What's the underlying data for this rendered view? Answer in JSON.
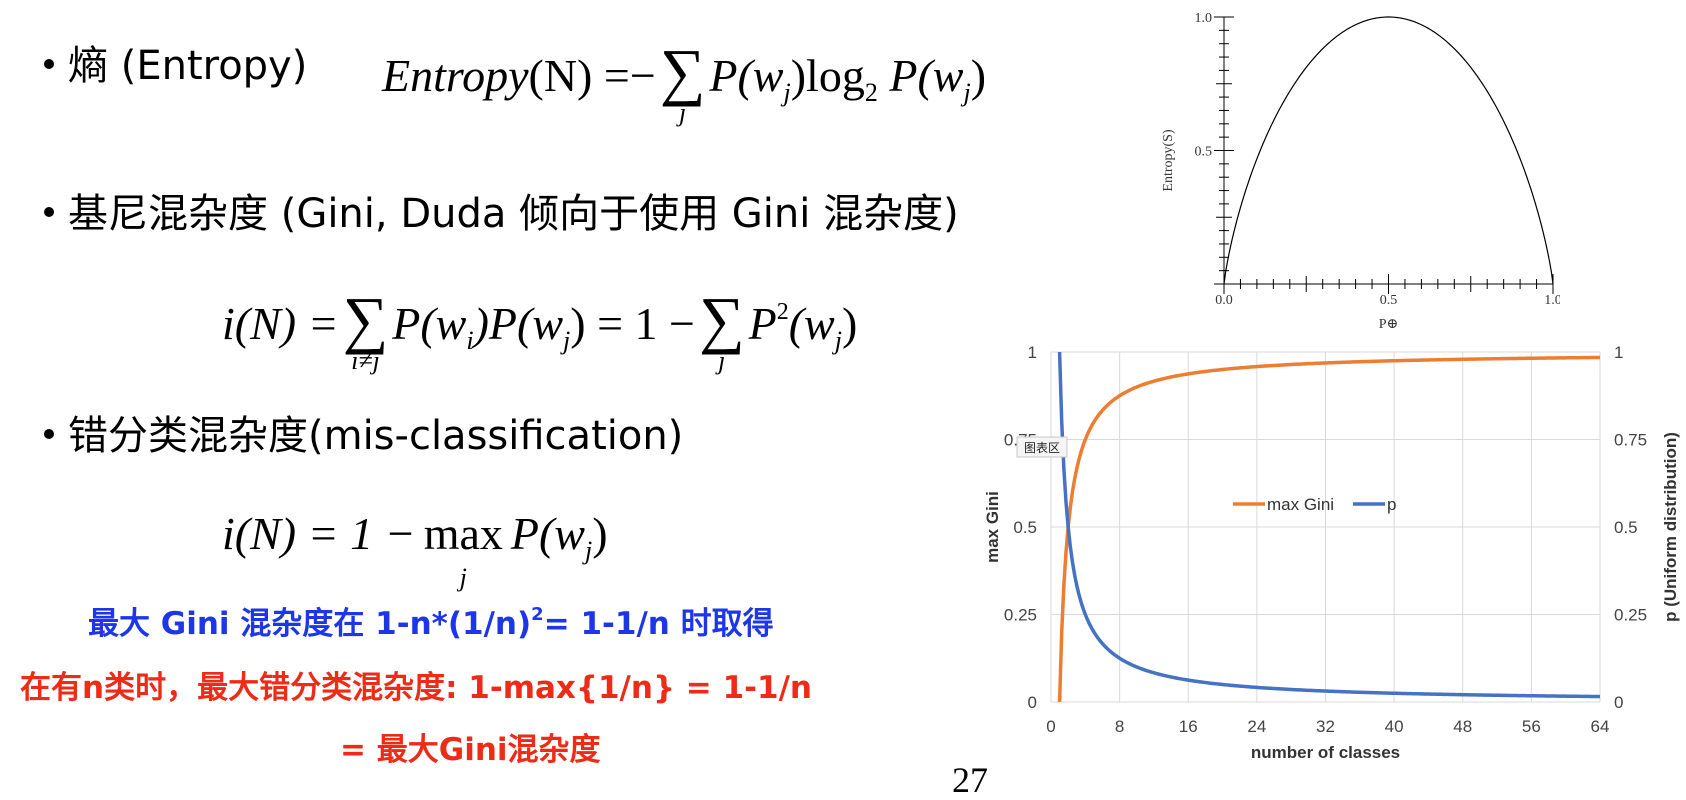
{
  "bullets": [
    {
      "label": "熵 (Entropy)"
    },
    {
      "label": "基尼混杂度 (Gini, Duda 倾向于使用 Gini 混杂度)"
    },
    {
      "label": "错分类混杂度(mis-classification)"
    }
  ],
  "formulas": {
    "entropy": {
      "lhs": "Entropy",
      "arg": "(N)",
      "eq": "=",
      "neg": "−",
      "sum_index": "j",
      "term": "P(w",
      "term_sub": "j",
      "log": ")log",
      "log_base": "2",
      "term2": " P(w",
      "term2_sub": "j",
      "close": ")"
    },
    "gini": {
      "lhs": "i(N) =",
      "sum1_index": "i≠j",
      "term_a": "P(w",
      "sub_i": "i",
      "term_b": ")P(w",
      "sub_j": "j",
      "term_c": ") = 1 −",
      "sum2_index": "j",
      "term_d": "P",
      "sup_2": "2",
      "term_e": "(w",
      "sub_j2": "j",
      "close": ")"
    },
    "misclass": {
      "lhs": "i(N) = 1 −",
      "max": "max",
      "max_index": "j",
      "term": "P(w",
      "sub_j": "j",
      "close": ")"
    }
  },
  "notes": {
    "blue_a": "最大 Gini 混杂度在 1-n*(1/n)",
    "blue_sup": "2",
    "blue_b": "= 1-1/n 时取得",
    "red_line1": "在有n类时，最大错分类混杂度: 1-max{1/n} = 1-1/n",
    "red_line2": "= 最大Gini混杂度"
  },
  "page_number": "27",
  "colors": {
    "blue_text": "#1d36e8",
    "red_text": "#ee2b16",
    "gini_line": "#ed7d31",
    "p_line": "#4472c4"
  },
  "chart_data": [
    {
      "type": "line",
      "xlabel": "P⊕",
      "ylabel": "Entropy(S)",
      "x_ticks": [
        "0.0",
        "0.5",
        "1.0"
      ],
      "y_ticks": [
        "0.5",
        "1.0"
      ],
      "xlim": [
        0,
        1
      ],
      "ylim": [
        0,
        1
      ],
      "series": [
        {
          "x": [
            0.0,
            0.05,
            0.1,
            0.2,
            0.3,
            0.4,
            0.5,
            0.6,
            0.7,
            0.8,
            0.9,
            0.95,
            1.0
          ],
          "values": [
            0.0,
            0.286,
            0.469,
            0.722,
            0.881,
            0.971,
            1.0,
            0.971,
            0.881,
            0.722,
            0.469,
            0.286,
            0.0
          ]
        }
      ]
    },
    {
      "type": "line",
      "xlabel": "number of classes",
      "ylabel": "max Gini",
      "y2label": "p (Uniform distribution)",
      "x_ticks": [
        "0",
        "8",
        "16",
        "24",
        "32",
        "40",
        "48",
        "56",
        "64"
      ],
      "y_ticks": [
        "0",
        "0.25",
        "0.5",
        "0.75",
        "1"
      ],
      "y2_ticks": [
        "0",
        "0.25",
        "0.5",
        "0.75",
        "1"
      ],
      "xlim": [
        0,
        64
      ],
      "ylim": [
        0,
        1
      ],
      "grid": true,
      "legend": "center",
      "chart_area_tooltip": "图表区",
      "series": [
        {
          "name": "max Gini",
          "color": "#ed7d31",
          "x": [
            1,
            2,
            3,
            4,
            5,
            6,
            8,
            10,
            12,
            16,
            20,
            24,
            32,
            40,
            48,
            56,
            64
          ],
          "values": [
            0,
            0.5,
            0.667,
            0.75,
            0.8,
            0.833,
            0.875,
            0.9,
            0.917,
            0.938,
            0.95,
            0.958,
            0.969,
            0.975,
            0.979,
            0.982,
            0.984
          ]
        },
        {
          "name": "p",
          "color": "#4472c4",
          "x": [
            1,
            2,
            3,
            4,
            5,
            6,
            8,
            10,
            12,
            16,
            20,
            24,
            32,
            40,
            48,
            56,
            64
          ],
          "values": [
            1,
            0.5,
            0.333,
            0.25,
            0.2,
            0.167,
            0.125,
            0.1,
            0.083,
            0.063,
            0.05,
            0.042,
            0.031,
            0.025,
            0.021,
            0.018,
            0.016
          ]
        }
      ]
    }
  ]
}
